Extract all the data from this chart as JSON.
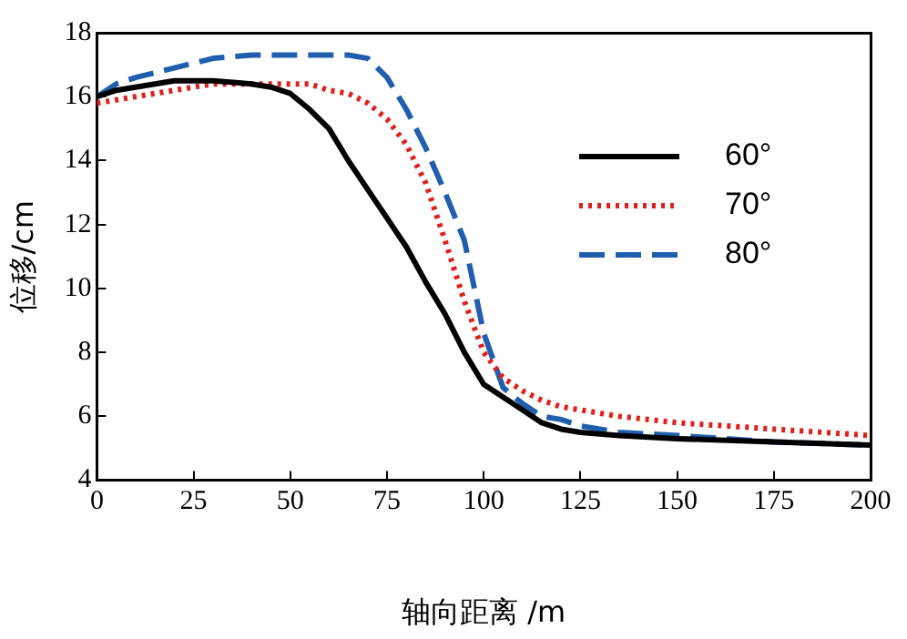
{
  "chart_data": {
    "type": "line",
    "xlabel": "轴向距离 /m",
    "ylabel": "位移/cm",
    "xlim": [
      0,
      200
    ],
    "xticks": [
      0,
      25,
      50,
      75,
      100,
      125,
      150,
      175,
      200
    ],
    "ylim": [
      4,
      18
    ],
    "yticks": [
      4,
      6,
      8,
      10,
      12,
      14,
      16,
      18
    ],
    "grid": false,
    "legend": "top right",
    "marker": "none",
    "series": [
      {
        "name": "60°",
        "color": "#000000",
        "line_style": "solid",
        "x": [
          0,
          5,
          10,
          20,
          30,
          40,
          45,
          50,
          55,
          60,
          65,
          70,
          75,
          80,
          85,
          90,
          95,
          100,
          105,
          110,
          115,
          120,
          125,
          135,
          150,
          175,
          200
        ],
        "values": [
          16.0,
          16.2,
          16.3,
          16.5,
          16.5,
          16.4,
          16.3,
          16.1,
          15.6,
          15.0,
          14.0,
          13.1,
          12.2,
          11.3,
          10.2,
          9.2,
          8.0,
          7.0,
          6.6,
          6.2,
          5.8,
          5.6,
          5.5,
          5.4,
          5.3,
          5.2,
          5.1
        ]
      },
      {
        "name": "70°",
        "color": "#e0201b",
        "line_style": "dotted",
        "x": [
          0,
          10,
          20,
          30,
          40,
          50,
          55,
          60,
          65,
          70,
          75,
          80,
          85,
          90,
          95,
          100,
          105,
          110,
          115,
          120,
          125,
          135,
          150,
          175,
          200
        ],
        "values": [
          15.8,
          16.0,
          16.2,
          16.4,
          16.4,
          16.4,
          16.4,
          16.2,
          16.1,
          15.8,
          15.3,
          14.5,
          13.3,
          11.5,
          9.6,
          8.0,
          7.2,
          6.8,
          6.5,
          6.3,
          6.2,
          6.0,
          5.8,
          5.6,
          5.4
        ]
      },
      {
        "name": "80°",
        "color": "#1f5fad",
        "line_style": "dashed",
        "x": [
          0,
          5,
          10,
          20,
          30,
          40,
          50,
          60,
          65,
          70,
          75,
          80,
          85,
          90,
          95,
          100,
          105,
          110,
          115,
          120,
          125,
          135,
          150,
          175,
          200
        ],
        "values": [
          16.0,
          16.4,
          16.6,
          16.9,
          17.2,
          17.3,
          17.3,
          17.3,
          17.3,
          17.2,
          16.6,
          15.6,
          14.4,
          13.0,
          11.5,
          8.6,
          6.9,
          6.4,
          6.0,
          5.9,
          5.7,
          5.5,
          5.4,
          5.2,
          5.1
        ]
      }
    ]
  }
}
